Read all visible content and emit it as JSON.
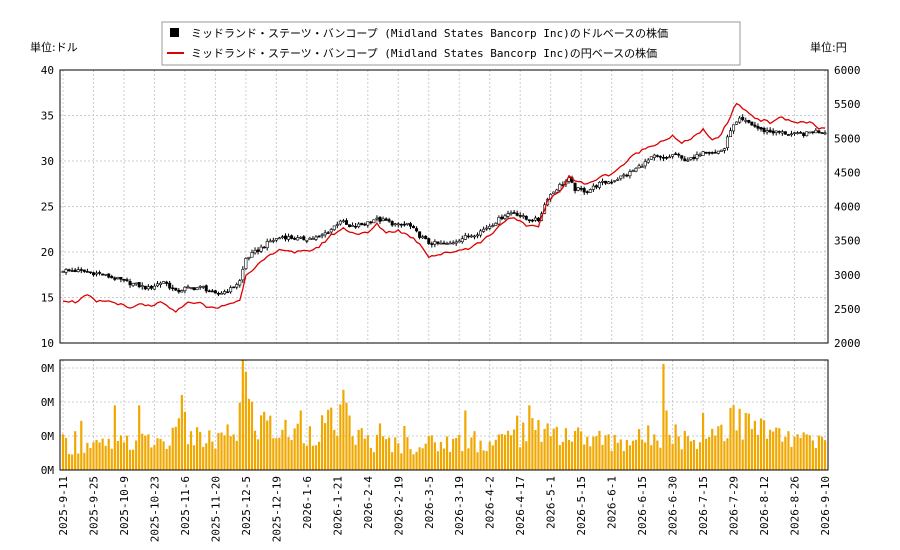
{
  "chart_data": {
    "type": "line",
    "legend": {
      "placement": "top-center",
      "entries": [
        {
          "label": "ミッドランド・ステーツ・バンコープ (Midland States Bancorp Inc)のドルベースの株価",
          "color": "#000000",
          "marker": "square"
        },
        {
          "label": "ミッドランド・ステーツ・バンコープ (Midland States Bancorp Inc)の円ベースの株価",
          "color": "#dd0000",
          "marker": "line"
        }
      ]
    },
    "left_unit_label": "単位:ドル",
    "right_unit_label": "単位:円",
    "price_panel": {
      "y_left": {
        "ticks": [
          "10",
          "15",
          "20",
          "25",
          "30",
          "35",
          "40"
        ],
        "range": [
          10,
          40
        ]
      },
      "y_right": {
        "ticks": [
          "2000",
          "2500",
          "3000",
          "3500",
          "4000",
          "4500",
          "5000",
          "5500",
          "6000"
        ],
        "range": [
          2000,
          6000
        ]
      },
      "grid": true
    },
    "volume_panel": {
      "ticks": [
        "0M",
        "0M",
        "0M",
        "0M"
      ],
      "bar_color": "#f0a800",
      "grid": true
    },
    "x_ticks": [
      "2025-9-11",
      "2025-9-25",
      "2025-10-9",
      "2025-10-23",
      "2025-11-6",
      "2025-11-20",
      "2025-12-5",
      "2025-12-19",
      "2026-1-6",
      "2026-1-21",
      "2026-2-4",
      "2026-2-19",
      "2026-3-5",
      "2026-3-19",
      "2026-4-2",
      "2026-4-17",
      "2026-5-1",
      "2026-5-15",
      "2026-6-1",
      "2026-6-15",
      "2026-6-30",
      "2026-7-15",
      "2026-7-29",
      "2026-8-12",
      "2026-8-26",
      "2026-9-10"
    ],
    "x_tick_index": [
      0,
      10,
      20,
      30,
      40,
      50,
      60,
      70,
      80,
      90,
      100,
      110,
      120,
      130,
      140,
      150,
      160,
      170,
      180,
      190,
      200,
      210,
      220,
      230,
      240,
      250
    ],
    "n_days": 251,
    "usd_anchors": [
      [
        0,
        18.0
      ],
      [
        6,
        17.9
      ],
      [
        12,
        17.6
      ],
      [
        18,
        17.0
      ],
      [
        22,
        16.6
      ],
      [
        28,
        16.0
      ],
      [
        33,
        16.8
      ],
      [
        37,
        15.6
      ],
      [
        40,
        16.0
      ],
      [
        46,
        16.1
      ],
      [
        50,
        15.3
      ],
      [
        55,
        15.9
      ],
      [
        58,
        16.8
      ],
      [
        60,
        19.3
      ],
      [
        64,
        20.2
      ],
      [
        68,
        21.2
      ],
      [
        72,
        21.7
      ],
      [
        78,
        21.4
      ],
      [
        84,
        21.6
      ],
      [
        88,
        22.5
      ],
      [
        91,
        23.5
      ],
      [
        94,
        22.7
      ],
      [
        98,
        23.0
      ],
      [
        102,
        23.6
      ],
      [
        106,
        23.4
      ],
      [
        110,
        22.9
      ],
      [
        113,
        23.1
      ],
      [
        117,
        21.8
      ],
      [
        120,
        21.0
      ],
      [
        126,
        20.8
      ],
      [
        130,
        21.4
      ],
      [
        136,
        22.1
      ],
      [
        141,
        23.1
      ],
      [
        145,
        24.1
      ],
      [
        148,
        24.4
      ],
      [
        152,
        23.6
      ],
      [
        156,
        23.5
      ],
      [
        159,
        26.0
      ],
      [
        163,
        27.3
      ],
      [
        166,
        28.0
      ],
      [
        168,
        26.9
      ],
      [
        172,
        26.7
      ],
      [
        176,
        27.5
      ],
      [
        180,
        27.8
      ],
      [
        186,
        28.7
      ],
      [
        190,
        29.6
      ],
      [
        194,
        30.5
      ],
      [
        197,
        30.2
      ],
      [
        201,
        30.8
      ],
      [
        203,
        30.2
      ],
      [
        207,
        30.2
      ],
      [
        210,
        31.2
      ],
      [
        214,
        30.9
      ],
      [
        217,
        31.4
      ],
      [
        219,
        33.5
      ],
      [
        222,
        34.5
      ],
      [
        225,
        34.2
      ],
      [
        229,
        33.4
      ],
      [
        233,
        33.2
      ],
      [
        236,
        33.1
      ],
      [
        240,
        32.9
      ],
      [
        244,
        33.0
      ],
      [
        246,
        33.3
      ],
      [
        250,
        33.2
      ]
    ],
    "jpy_anchors": [
      [
        0,
        2630
      ],
      [
        4,
        2600
      ],
      [
        8,
        2700
      ],
      [
        11,
        2600
      ],
      [
        14,
        2620
      ],
      [
        18,
        2580
      ],
      [
        22,
        2500
      ],
      [
        26,
        2580
      ],
      [
        29,
        2520
      ],
      [
        32,
        2600
      ],
      [
        35,
        2520
      ],
      [
        37,
        2440
      ],
      [
        40,
        2580
      ],
      [
        44,
        2600
      ],
      [
        47,
        2540
      ],
      [
        50,
        2500
      ],
      [
        54,
        2570
      ],
      [
        58,
        2620
      ],
      [
        60,
        3000
      ],
      [
        64,
        3150
      ],
      [
        68,
        3280
      ],
      [
        72,
        3380
      ],
      [
        76,
        3330
      ],
      [
        80,
        3340
      ],
      [
        84,
        3410
      ],
      [
        88,
        3580
      ],
      [
        92,
        3680
      ],
      [
        96,
        3600
      ],
      [
        100,
        3610
      ],
      [
        103,
        3740
      ],
      [
        106,
        3620
      ],
      [
        110,
        3650
      ],
      [
        114,
        3560
      ],
      [
        117,
        3460
      ],
      [
        120,
        3270
      ],
      [
        124,
        3300
      ],
      [
        128,
        3340
      ],
      [
        133,
        3390
      ],
      [
        137,
        3480
      ],
      [
        141,
        3620
      ],
      [
        145,
        3800
      ],
      [
        148,
        3820
      ],
      [
        152,
        3720
      ],
      [
        156,
        3720
      ],
      [
        159,
        4080
      ],
      [
        163,
        4220
      ],
      [
        166,
        4450
      ],
      [
        168,
        4380
      ],
      [
        172,
        4320
      ],
      [
        176,
        4430
      ],
      [
        180,
        4480
      ],
      [
        184,
        4620
      ],
      [
        188,
        4780
      ],
      [
        192,
        4870
      ],
      [
        196,
        4950
      ],
      [
        200,
        5030
      ],
      [
        203,
        4920
      ],
      [
        206,
        5000
      ],
      [
        210,
        5120
      ],
      [
        213,
        4960
      ],
      [
        216,
        5060
      ],
      [
        219,
        5320
      ],
      [
        221,
        5520
      ],
      [
        224,
        5400
      ],
      [
        228,
        5280
      ],
      [
        232,
        5230
      ],
      [
        235,
        5310
      ],
      [
        238,
        5260
      ],
      [
        241,
        5230
      ],
      [
        245,
        5240
      ],
      [
        248,
        5130
      ],
      [
        250,
        5140
      ]
    ],
    "volume_profile": [
      [
        0,
        0.2
      ],
      [
        10,
        0.18
      ],
      [
        20,
        0.2
      ],
      [
        30,
        0.22
      ],
      [
        40,
        0.25
      ],
      [
        50,
        0.22
      ],
      [
        58,
        0.3
      ],
      [
        60,
        0.55
      ],
      [
        63,
        0.35
      ],
      [
        70,
        0.3
      ],
      [
        80,
        0.28
      ],
      [
        90,
        0.38
      ],
      [
        95,
        0.3
      ],
      [
        100,
        0.22
      ],
      [
        110,
        0.2
      ],
      [
        120,
        0.2
      ],
      [
        130,
        0.22
      ],
      [
        140,
        0.2
      ],
      [
        150,
        0.28
      ],
      [
        160,
        0.3
      ],
      [
        170,
        0.25
      ],
      [
        180,
        0.22
      ],
      [
        190,
        0.24
      ],
      [
        200,
        0.3
      ],
      [
        205,
        0.22
      ],
      [
        215,
        0.32
      ],
      [
        220,
        0.38
      ],
      [
        230,
        0.3
      ],
      [
        240,
        0.24
      ],
      [
        250,
        0.2
      ]
    ],
    "volume_spikes": [
      [
        4,
        0.3
      ],
      [
        6,
        0.38
      ],
      [
        17,
        0.5
      ],
      [
        25,
        0.5
      ],
      [
        38,
        0.4
      ],
      [
        39,
        0.58
      ],
      [
        40,
        0.45
      ],
      [
        42,
        0.3
      ],
      [
        58,
        0.52
      ],
      [
        59,
        0.85
      ],
      [
        60,
        0.76
      ],
      [
        61,
        0.55
      ],
      [
        66,
        0.45
      ],
      [
        68,
        0.42
      ],
      [
        78,
        0.46
      ],
      [
        92,
        0.62
      ],
      [
        93,
        0.52
      ],
      [
        104,
        0.36
      ],
      [
        112,
        0.34
      ],
      [
        132,
        0.46
      ],
      [
        135,
        0.3
      ],
      [
        149,
        0.42
      ],
      [
        153,
        0.5
      ],
      [
        159,
        0.36
      ],
      [
        161,
        0.32
      ],
      [
        197,
        0.82
      ],
      [
        198,
        0.46
      ],
      [
        210,
        0.44
      ],
      [
        219,
        0.48
      ],
      [
        220,
        0.5
      ],
      [
        227,
        0.38
      ],
      [
        238,
        0.3
      ]
    ],
    "volume_max": 0.85
  }
}
